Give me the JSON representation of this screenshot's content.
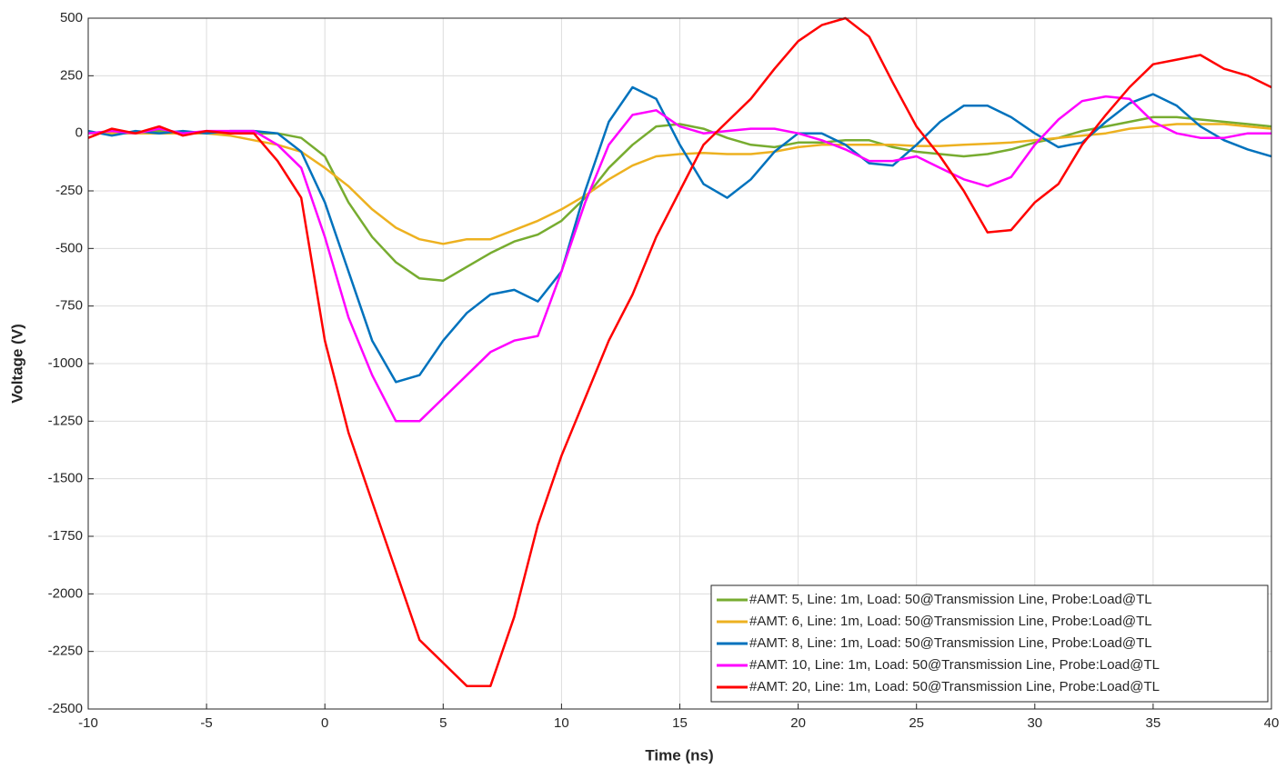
{
  "chart_data": {
    "type": "line",
    "xlabel": "Time (ns)",
    "ylabel": "Voltage (V)",
    "x": [
      -10,
      -9,
      -8,
      -7,
      -6,
      -5,
      -4,
      -3,
      -2,
      -1,
      0,
      1,
      2,
      3,
      4,
      5,
      6,
      7,
      8,
      9,
      10,
      11,
      12,
      13,
      14,
      15,
      16,
      17,
      18,
      19,
      20,
      21,
      22,
      23,
      24,
      25,
      26,
      27,
      28,
      29,
      30,
      31,
      32,
      33,
      34,
      35,
      36,
      37,
      38,
      39,
      40
    ],
    "series": [
      {
        "name": "#AMT: 5, Line: 1m, Load: 50@Transmission Line, Probe:Load@TL",
        "color": "#77ac30",
        "values": [
          0,
          10,
          0,
          10,
          0,
          0,
          0,
          0,
          0,
          -20,
          -100,
          -300,
          -450,
          -560,
          -630,
          -640,
          -580,
          -520,
          -470,
          -440,
          -380,
          -280,
          -150,
          -50,
          30,
          40,
          20,
          -20,
          -50,
          -60,
          -40,
          -40,
          -30,
          -30,
          -60,
          -80,
          -90,
          -100,
          -90,
          -70,
          -40,
          -20,
          10,
          30,
          50,
          70,
          70,
          60,
          50,
          40,
          30
        ]
      },
      {
        "name": "#AMT: 6, Line: 1m, Load: 50@Transmission Line, Probe:Load@TL",
        "color": "#edb120",
        "values": [
          0,
          0,
          0,
          0,
          0,
          0,
          -10,
          -30,
          -50,
          -80,
          -150,
          -230,
          -330,
          -410,
          -460,
          -480,
          -460,
          -460,
          -420,
          -380,
          -330,
          -270,
          -200,
          -140,
          -100,
          -90,
          -85,
          -90,
          -90,
          -80,
          -60,
          -50,
          -50,
          -50,
          -50,
          -55,
          -55,
          -50,
          -45,
          -40,
          -30,
          -20,
          -10,
          0,
          20,
          30,
          40,
          40,
          40,
          30,
          20
        ]
      },
      {
        "name": "#AMT: 8, Line: 1m, Load: 50@Transmission Line, Probe:Load@TL",
        "color": "#0072bd",
        "values": [
          10,
          -10,
          10,
          0,
          10,
          0,
          10,
          10,
          0,
          -80,
          -300,
          -600,
          -900,
          -1080,
          -1050,
          -900,
          -780,
          -700,
          -680,
          -730,
          -600,
          -250,
          50,
          200,
          150,
          -50,
          -220,
          -280,
          -200,
          -80,
          0,
          0,
          -50,
          -130,
          -140,
          -50,
          50,
          120,
          120,
          70,
          0,
          -60,
          -40,
          50,
          130,
          170,
          120,
          30,
          -30,
          -70,
          -100
        ]
      },
      {
        "name": "#AMT: 10, Line: 1m, Load: 50@Transmission Line, Probe:Load@TL",
        "color": "#ff00ff",
        "values": [
          0,
          10,
          0,
          20,
          0,
          10,
          10,
          10,
          -50,
          -150,
          -450,
          -800,
          -1050,
          -1250,
          -1250,
          -1150,
          -1050,
          -950,
          -900,
          -880,
          -600,
          -300,
          -50,
          80,
          100,
          30,
          0,
          10,
          20,
          20,
          0,
          -30,
          -70,
          -120,
          -120,
          -100,
          -150,
          -200,
          -230,
          -190,
          -50,
          60,
          140,
          160,
          150,
          50,
          0,
          -20,
          -20,
          0,
          0
        ]
      },
      {
        "name": "#AMT: 20, Line: 1m, Load: 50@Transmission Line, Probe:Load@TL",
        "color": "#ff0000",
        "values": [
          -20,
          20,
          0,
          30,
          -10,
          10,
          0,
          0,
          -120,
          -280,
          -900,
          -1300,
          -1600,
          -1900,
          -2200,
          -2300,
          -2400,
          -2400,
          -2100,
          -1700,
          -1400,
          -1150,
          -900,
          -700,
          -450,
          -250,
          -50,
          50,
          150,
          280,
          400,
          470,
          500,
          420,
          220,
          30,
          -100,
          -250,
          -430,
          -420,
          -300,
          -220,
          -50,
          80,
          200,
          300,
          320,
          340,
          280,
          250,
          200
        ]
      }
    ],
    "xlim": [
      -10,
      40
    ],
    "xticks": [
      -10,
      -5,
      0,
      5,
      10,
      15,
      20,
      25,
      30,
      35,
      40
    ],
    "ylim": [
      -2500,
      500
    ],
    "yticks": [
      -2500,
      -2250,
      -2000,
      -1750,
      -1500,
      -1250,
      -1000,
      -750,
      -500,
      -250,
      0,
      250,
      500
    ],
    "grid": true,
    "legend": "lower right"
  }
}
